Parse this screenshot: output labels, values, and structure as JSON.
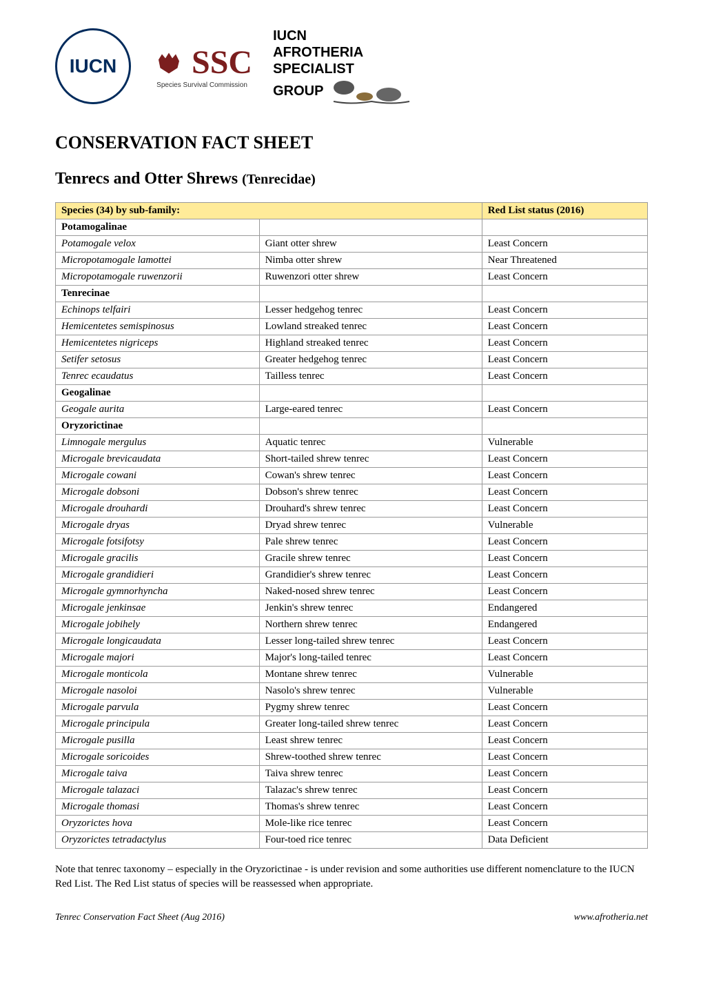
{
  "logos": {
    "iucn": "IUCN",
    "ssc_main": "SSC",
    "ssc_sub": "Species Survival Commission",
    "afrotheria_line1": "IUCN",
    "afrotheria_line2": "AFROTHERIA",
    "afrotheria_line3": "SPECIALIST",
    "afrotheria_line4": "GROUP"
  },
  "heading1": "CONSERVATION FACT SHEET",
  "heading2_main": "Tenrecs and Otter Shrews ",
  "heading2_sub": "(Tenrecidae)",
  "table": {
    "header_col1": "Species (34) by sub-family:",
    "header_col2": "Red List status (2016)",
    "header_bg": "#ffeb99",
    "border_color": "#999999",
    "font_size": 15,
    "subfamilies": [
      {
        "name": "Potamogalinae",
        "species": [
          {
            "latin": "Potamogale velox",
            "common": "Giant otter shrew",
            "status": "Least Concern"
          },
          {
            "latin": "Micropotamogale lamottei",
            "common": "Nimba otter shrew",
            "status": "Near Threatened"
          },
          {
            "latin": "Micropotamogale ruwenzorii",
            "common": "Ruwenzori otter shrew",
            "status": "Least Concern"
          }
        ]
      },
      {
        "name": "Tenrecinae",
        "species": [
          {
            "latin": "Echinops telfairi",
            "common": "Lesser hedgehog tenrec",
            "status": "Least Concern"
          },
          {
            "latin": "Hemicentetes semispinosus",
            "common": "Lowland streaked tenrec",
            "status": "Least Concern"
          },
          {
            "latin": "Hemicentetes nigriceps",
            "common": "Highland streaked tenrec",
            "status": "Least Concern"
          },
          {
            "latin": "Setifer setosus",
            "common": "Greater hedgehog tenrec",
            "status": "Least Concern"
          },
          {
            "latin": "Tenrec ecaudatus",
            "common": "Tailless tenrec",
            "status": "Least Concern"
          }
        ]
      },
      {
        "name": "Geogalinae",
        "species": [
          {
            "latin": "Geogale aurita",
            "common": "Large-eared tenrec",
            "status": "Least Concern"
          }
        ]
      },
      {
        "name": "Oryzorictinae",
        "species": [
          {
            "latin": "Limnogale mergulus",
            "common": "Aquatic tenrec",
            "status": "Vulnerable"
          },
          {
            "latin": "Microgale brevicaudata",
            "common": "Short-tailed shrew tenrec",
            "status": "Least Concern"
          },
          {
            "latin": "Microgale cowani",
            "common": "Cowan's shrew tenrec",
            "status": "Least Concern"
          },
          {
            "latin": "Microgale dobsoni",
            "common": "Dobson's shrew tenrec",
            "status": "Least Concern"
          },
          {
            "latin": "Microgale drouhardi",
            "common": "Drouhard's shrew tenrec",
            "status": "Least Concern"
          },
          {
            "latin": "Microgale dryas",
            "common": "Dryad shrew tenrec",
            "status": "Vulnerable"
          },
          {
            "latin": "Microgale fotsifotsy",
            "common": "Pale shrew tenrec",
            "status": "Least Concern"
          },
          {
            "latin": "Microgale gracilis",
            "common": "Gracile shrew tenrec",
            "status": "Least Concern"
          },
          {
            "latin": "Microgale grandidieri",
            "common": "Grandidier's shrew tenrec",
            "status": "Least Concern"
          },
          {
            "latin": "Microgale gymnorhyncha",
            "common": "Naked-nosed shrew tenrec",
            "status": "Least Concern"
          },
          {
            "latin": "Microgale jenkinsae",
            "common": "Jenkin's shrew tenrec",
            "status": "Endangered"
          },
          {
            "latin": "Microgale jobihely",
            "common": "Northern shrew tenrec",
            "status": "Endangered"
          },
          {
            "latin": "Microgale longicaudata",
            "common": "Lesser long-tailed shrew tenrec",
            "status": "Least Concern"
          },
          {
            "latin": "Microgale majori",
            "common": "Major's long-tailed tenrec",
            "status": "Least Concern"
          },
          {
            "latin": "Microgale monticola",
            "common": "Montane shrew tenrec",
            "status": "Vulnerable"
          },
          {
            "latin": "Microgale nasoloi",
            "common": "Nasolo's shrew tenrec",
            "status": "Vulnerable"
          },
          {
            "latin": "Microgale parvula",
            "common": "Pygmy shrew tenrec",
            "status": "Least Concern"
          },
          {
            "latin": "Microgale principula",
            "common": "Greater long-tailed shrew tenrec",
            "status": "Least Concern"
          },
          {
            "latin": "Microgale pusilla",
            "common": "Least shrew tenrec",
            "status": "Least Concern"
          },
          {
            "latin": "Microgale soricoides",
            "common": "Shrew-toothed shrew tenrec",
            "status": "Least Concern"
          },
          {
            "latin": "Microgale taiva",
            "common": "Taiva shrew tenrec",
            "status": "Least Concern"
          },
          {
            "latin": "Microgale talazaci",
            "common": "Talazac's shrew tenrec",
            "status": "Least Concern"
          },
          {
            "latin": "Microgale thomasi",
            "common": "Thomas's shrew tenrec",
            "status": "Least Concern"
          },
          {
            "latin": "Oryzorictes hova",
            "common": "Mole-like rice tenrec",
            "status": "Least Concern"
          },
          {
            "latin": "Oryzorictes tetradactylus",
            "common": "Four-toed rice tenrec",
            "status": "Data Deficient"
          }
        ]
      }
    ]
  },
  "note": "Note that tenrec taxonomy – especially in the Oryzorictinae - is under revision and some authorities use different nomenclature to the IUCN Red List. The Red List status of species will be reassessed when appropriate.",
  "footer_left": "Tenrec Conservation Fact Sheet (Aug 2016)",
  "footer_right": "www.afrotheria.net",
  "colors": {
    "text": "#000000",
    "background": "#ffffff",
    "iucn_blue": "#002b5c",
    "ssc_red": "#7b1e1e"
  }
}
